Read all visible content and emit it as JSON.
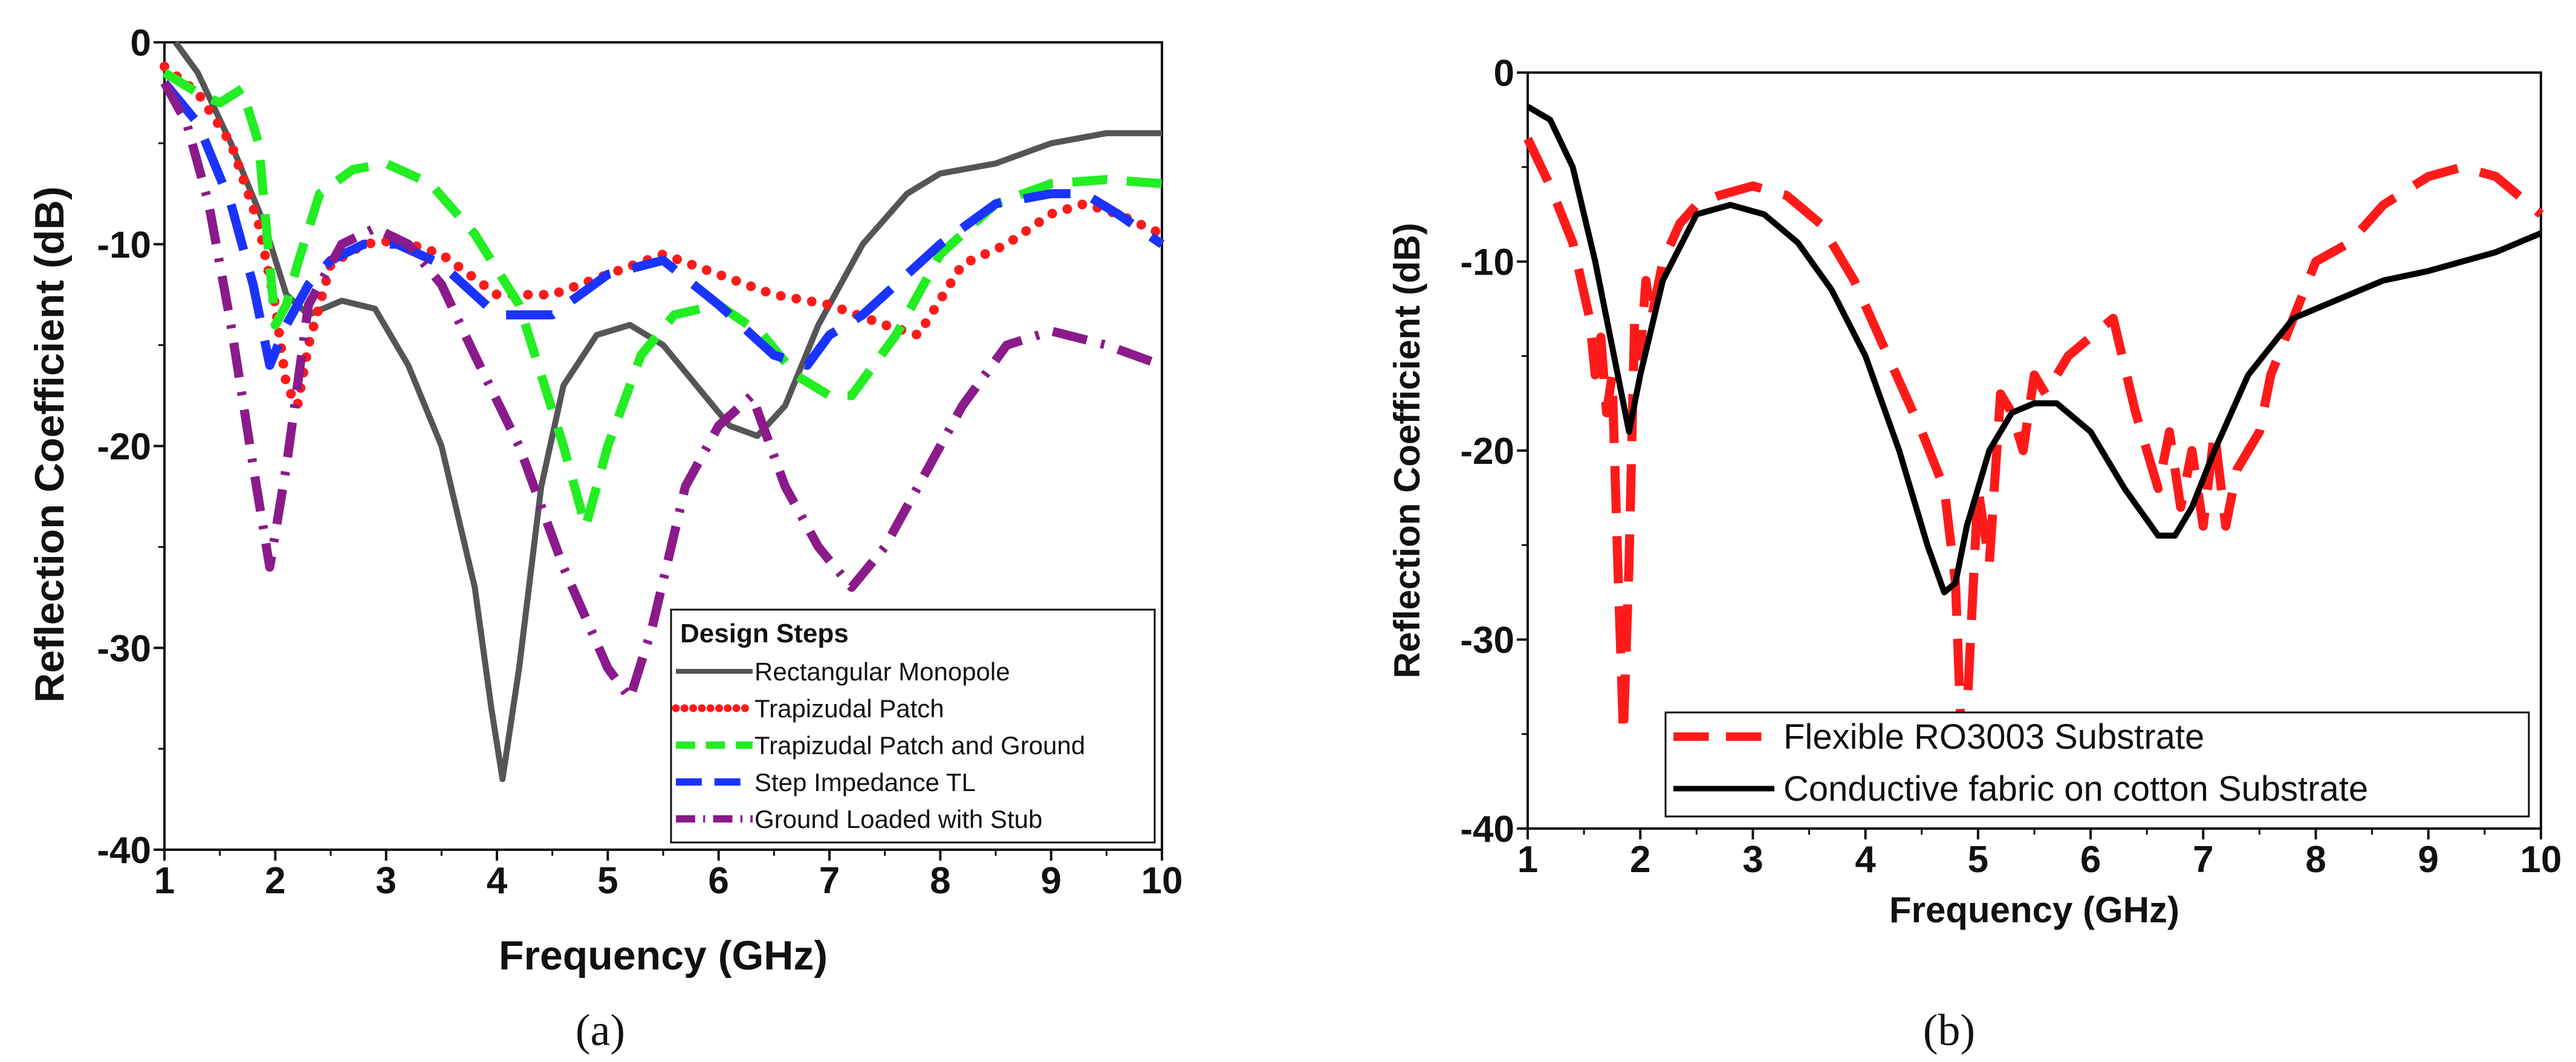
{
  "chart_data": [
    {
      "type": "line",
      "caption": "(a)",
      "title": "",
      "xlabel": "Frequency (GHz)",
      "ylabel": "Reflection Coefficient (dB)",
      "xlim": [
        1,
        10
      ],
      "ylim": [
        -40,
        0
      ],
      "xticks": [
        "1",
        "2",
        "3",
        "4",
        "5",
        "6",
        "7",
        "8",
        "9",
        "10"
      ],
      "yticks": [
        "0",
        "-10",
        "-20",
        "-30",
        "-40"
      ],
      "grid": false,
      "legend": {
        "title": "Design Steps",
        "position": "bottom-right"
      },
      "series": [
        {
          "name": "Rectangular Monopole",
          "color": "#555555",
          "dash": "solid",
          "x": [
            1.1,
            1.3,
            1.6,
            1.9,
            2.1,
            2.3,
            2.6,
            2.9,
            3.2,
            3.5,
            3.8,
            3.95,
            4.05,
            4.2,
            4.4,
            4.6,
            4.9,
            5.2,
            5.5,
            5.8,
            6.1,
            6.35,
            6.6,
            6.9,
            7.3,
            7.7,
            8.0,
            8.5,
            9.0,
            9.5,
            10.0
          ],
          "y": [
            0,
            -1.5,
            -5,
            -9,
            -12.5,
            -13.5,
            -12.8,
            -13.2,
            -16,
            -20,
            -27,
            -33,
            -36.5,
            -31,
            -22,
            -17,
            -14.5,
            -14,
            -15,
            -17,
            -19,
            -19.5,
            -18,
            -14,
            -10,
            -7.5,
            -6.5,
            -6,
            -5,
            -4.5,
            -4.5
          ]
        },
        {
          "name": "Trapizudal Patch",
          "color": "#ff1a1a",
          "dash": "dot",
          "x": [
            1.0,
            1.3,
            1.6,
            1.85,
            2.0,
            2.1,
            2.2,
            2.3,
            2.5,
            2.8,
            3.1,
            3.5,
            4.0,
            4.5,
            5.0,
            5.5,
            6.0,
            6.5,
            7.0,
            7.5,
            7.8,
            8.2,
            8.6,
            9.0,
            9.3,
            9.6,
            10.0
          ],
          "y": [
            -1.2,
            -2.5,
            -5,
            -9,
            -13,
            -17,
            -18,
            -15,
            -11,
            -10,
            -9.8,
            -10.5,
            -12.5,
            -12.5,
            -11.5,
            -10.5,
            -11.5,
            -12.5,
            -13,
            -14,
            -14.5,
            -11,
            -10,
            -8.5,
            -8,
            -8.5,
            -9.5
          ]
        },
        {
          "name": "Trapizudal Patch and Ground",
          "color": "#22ee22",
          "dash": "dash",
          "x": [
            1.0,
            1.3,
            1.5,
            1.7,
            1.85,
            2.0,
            2.1,
            2.2,
            2.4,
            2.7,
            3.0,
            3.4,
            3.8,
            4.2,
            4.6,
            4.8,
            5.0,
            5.3,
            5.6,
            6.0,
            6.4,
            6.7,
            7.0,
            7.2,
            7.6,
            8.0,
            8.5,
            9.0,
            9.5,
            10.0
          ],
          "y": [
            -1.5,
            -2.5,
            -3,
            -2.3,
            -5,
            -14,
            -13,
            -11,
            -7.5,
            -6.3,
            -6,
            -7,
            -9.5,
            -13,
            -20,
            -24,
            -20,
            -15.5,
            -13.5,
            -13,
            -14.5,
            -16.5,
            -17.5,
            -17.5,
            -14.5,
            -10.5,
            -8,
            -7,
            -6.8,
            -7
          ]
        },
        {
          "name": "Step Impedance TL",
          "color": "#1a33ff",
          "dash": "longdash",
          "x": [
            1.0,
            1.3,
            1.6,
            1.8,
            1.95,
            2.1,
            2.3,
            2.5,
            2.8,
            3.1,
            3.5,
            4.0,
            4.5,
            5.0,
            5.5,
            6.0,
            6.5,
            6.8,
            7.0,
            7.3,
            7.6,
            8.0,
            8.5,
            9.0,
            9.3,
            9.6,
            10.0
          ],
          "y": [
            -2,
            -4,
            -8,
            -12,
            -16,
            -14,
            -12,
            -10.8,
            -10,
            -10,
            -11,
            -13.5,
            -13.5,
            -11.5,
            -10.8,
            -13,
            -15.5,
            -16,
            -14.5,
            -13.5,
            -12,
            -10,
            -8,
            -7.5,
            -7.5,
            -8.5,
            -10
          ]
        },
        {
          "name": "Ground Loaded with Stub",
          "color": "#8b1a8b",
          "dash": "dashdot",
          "x": [
            1.0,
            1.2,
            1.4,
            1.6,
            1.8,
            1.95,
            2.1,
            2.3,
            2.6,
            2.9,
            3.2,
            3.5,
            3.8,
            4.2,
            4.6,
            5.0,
            5.2,
            5.4,
            5.7,
            6.0,
            6.3,
            6.6,
            6.9,
            7.2,
            7.5,
            7.8,
            8.2,
            8.6,
            9.0,
            9.5,
            10.0
          ],
          "y": [
            -2,
            -4,
            -8,
            -14,
            -21,
            -26,
            -21,
            -13,
            -10,
            -9.2,
            -10,
            -12,
            -15.5,
            -20,
            -26,
            -31,
            -32.5,
            -29,
            -22,
            -19,
            -17.5,
            -22,
            -25,
            -27,
            -25,
            -22,
            -18,
            -15,
            -14.3,
            -15,
            -16
          ]
        }
      ]
    },
    {
      "type": "line",
      "caption": "(b)",
      "title": "",
      "xlabel": "Frequency (GHz)",
      "ylabel": "Reflection Coefficient (dB)",
      "xlim": [
        1,
        10
      ],
      "ylim": [
        -40,
        0
      ],
      "xticks": [
        "1",
        "2",
        "3",
        "4",
        "5",
        "6",
        "7",
        "8",
        "9",
        "10"
      ],
      "yticks": [
        "0",
        "-10",
        "-20",
        "-30",
        "-40"
      ],
      "grid": false,
      "legend": {
        "title": "",
        "position": "bottom"
      },
      "series": [
        {
          "name": "Flexible RO3003 Substrate",
          "color": "#ff1a1a",
          "dash": "longdash",
          "x": [
            1.0,
            1.2,
            1.4,
            1.55,
            1.6,
            1.65,
            1.7,
            1.75,
            1.8,
            1.85,
            1.9,
            1.95,
            2.0,
            2.05,
            2.1,
            2.2,
            2.35,
            2.5,
            2.7,
            3.0,
            3.3,
            3.6,
            3.9,
            4.2,
            4.5,
            4.7,
            4.8,
            4.85,
            4.9,
            4.95,
            5.0,
            5.1,
            5.2,
            5.3,
            5.4,
            5.5,
            5.6,
            5.8,
            6.0,
            6.2,
            6.4,
            6.6,
            6.7,
            6.8,
            6.9,
            7.0,
            7.1,
            7.2,
            7.3,
            7.4,
            7.5,
            7.6,
            7.8,
            8.0,
            8.3,
            8.6,
            9.0,
            9.3,
            9.6,
            10.0
          ],
          "y": [
            -3.5,
            -6,
            -9,
            -13,
            -16,
            -14,
            -18,
            -16,
            -26,
            -35,
            -26,
            -13,
            -15,
            -11,
            -13,
            -10,
            -8,
            -7,
            -6.5,
            -6,
            -6.5,
            -8,
            -11,
            -15,
            -19,
            -22,
            -27,
            -35,
            -34,
            -28,
            -22,
            -26,
            -17,
            -18,
            -20,
            -16,
            -17,
            -15,
            -14,
            -13,
            -18,
            -22,
            -19,
            -23,
            -20,
            -24,
            -19,
            -24,
            -21,
            -20,
            -19,
            -16,
            -13,
            -10,
            -9,
            -7,
            -5.5,
            -5,
            -5.5,
            -7.5
          ]
        },
        {
          "name": "Conductive fabric on cotton Substrate",
          "color": "#000000",
          "dash": "solid",
          "x": [
            1.0,
            1.2,
            1.4,
            1.6,
            1.8,
            1.9,
            2.0,
            2.2,
            2.5,
            2.8,
            3.1,
            3.4,
            3.7,
            4.0,
            4.3,
            4.55,
            4.7,
            4.8,
            4.9,
            5.1,
            5.3,
            5.5,
            5.7,
            6.0,
            6.3,
            6.6,
            6.75,
            6.9,
            7.1,
            7.4,
            7.8,
            8.2,
            8.6,
            9.0,
            9.3,
            9.6,
            10.0
          ],
          "y": [
            -1.8,
            -2.5,
            -5,
            -10,
            -16,
            -19,
            -16,
            -11,
            -7.5,
            -7,
            -7.5,
            -9,
            -11.5,
            -15,
            -20,
            -25,
            -27.5,
            -27,
            -24,
            -20,
            -18,
            -17.5,
            -17.5,
            -19,
            -22,
            -24.5,
            -24.5,
            -23,
            -20,
            -16,
            -13,
            -12,
            -11,
            -10.5,
            -10,
            -9.5,
            -8.5
          ]
        }
      ]
    }
  ]
}
